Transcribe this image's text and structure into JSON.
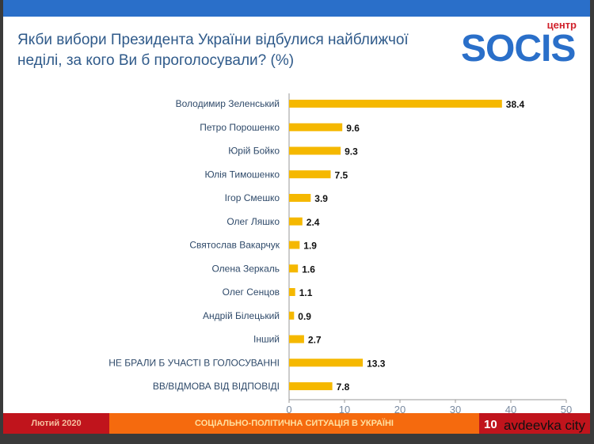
{
  "title": "Якби вибори Президента України відбулися найближчої неділі, за кого Ви б проголосували? (%)",
  "logo": {
    "top": "центр",
    "name": "SOCIS"
  },
  "footer": {
    "date": "Лютий 2020",
    "topic": "СОЦІАЛЬНО-ПОЛІТИЧНА СИТУАЦІЯ В УКРАЇНІ",
    "page": "10"
  },
  "watermark": "avdeevka city",
  "colors": {
    "bar": "#f5b800",
    "header": "#2a6fc9",
    "footer_red": "#c0141c",
    "footer_orange": "#f56a0e"
  },
  "chart_data": {
    "type": "bar",
    "orientation": "horizontal",
    "title": "Якби вибори Президента України відбулися найближчої неділі, за кого Ви б проголосували? (%)",
    "categories": [
      "Володимир Зеленський",
      "Петро Порошенко",
      "Юрій Бойко",
      "Юлія Тимошенко",
      "Ігор Смешко",
      "Олег Ляшко",
      "Святослав Вакарчук",
      "Олена Зеркаль",
      "Олег Сенцов",
      "Андрій Білецький",
      "Інший",
      "НЕ БРАЛИ Б УЧАСТІ В ГОЛОСУВАННІ",
      "ВВ/ВІДМОВА ВІД ВІДПОВІДІ"
    ],
    "values": [
      38.4,
      9.6,
      9.3,
      7.5,
      3.9,
      2.4,
      1.9,
      1.6,
      1.1,
      0.9,
      2.7,
      13.3,
      7.8
    ],
    "xlim": [
      0,
      50
    ],
    "xticks": [
      0,
      10,
      20,
      30,
      40,
      50
    ],
    "grid": false
  }
}
